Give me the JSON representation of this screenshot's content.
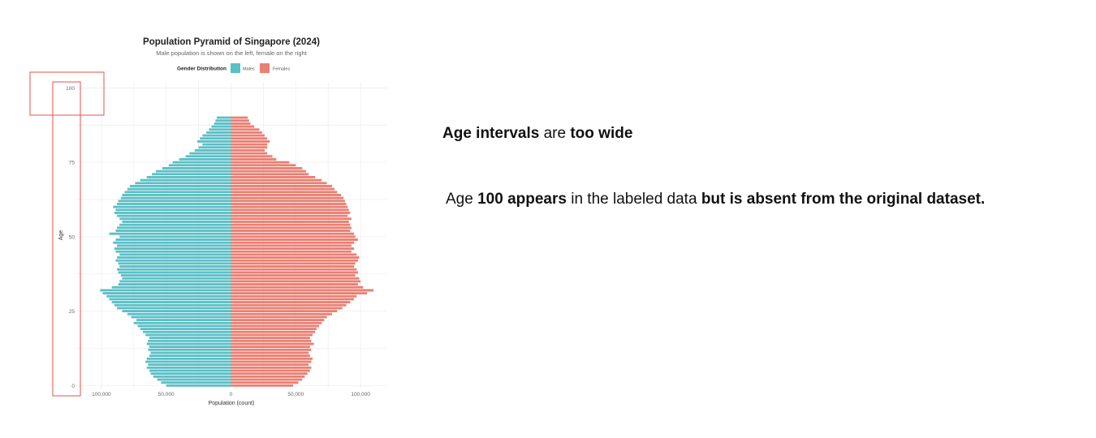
{
  "annotations": {
    "note1": {
      "part1": "Age intervals",
      "part2": " are ",
      "part3": "too wide"
    },
    "note2": {
      "part1": "Age ",
      "part2": "100 appears",
      "part3": " in the labeled data ",
      "part4": "but is absent from the original dataset."
    }
  },
  "colors": {
    "males": "#5bbfc6",
    "females": "#ea7f72",
    "highlight": "#e8504a",
    "grid": "#ececec"
  },
  "chart_data": {
    "type": "bar",
    "orientation": "horizontal-diverging",
    "title": "Population Pyramid of Singapore (2024)",
    "subtitle": "Male population is shown on the left, female on the right",
    "legend": {
      "title": "Gender Distribution",
      "position": "top",
      "items": [
        "Males",
        "Females"
      ]
    },
    "xlabel": "Population (count)",
    "ylabel": "Age",
    "xlim": [
      -120000,
      120000
    ],
    "ylim": [
      -1,
      102
    ],
    "x_ticks": [
      {
        "value": -100000,
        "label": "100,000"
      },
      {
        "value": -50000,
        "label": "50,000"
      },
      {
        "value": 0,
        "label": "0"
      },
      {
        "value": 50000,
        "label": "50,000"
      },
      {
        "value": 100000,
        "label": "100,000"
      }
    ],
    "y_ticks": [
      {
        "value": 0,
        "label": "0"
      },
      {
        "value": 25,
        "label": "25"
      },
      {
        "value": 50,
        "label": "50"
      },
      {
        "value": 75,
        "label": "75"
      },
      {
        "value": 100,
        "label": "100"
      }
    ],
    "grid": true,
    "ages": [
      0,
      1,
      2,
      3,
      4,
      5,
      6,
      7,
      8,
      9,
      10,
      11,
      12,
      13,
      14,
      15,
      16,
      17,
      18,
      19,
      20,
      21,
      22,
      23,
      24,
      25,
      26,
      27,
      28,
      29,
      30,
      31,
      32,
      33,
      34,
      35,
      36,
      37,
      38,
      39,
      40,
      41,
      42,
      43,
      44,
      45,
      46,
      47,
      48,
      49,
      50,
      51,
      52,
      53,
      54,
      55,
      56,
      57,
      58,
      59,
      60,
      61,
      62,
      63,
      64,
      65,
      66,
      67,
      68,
      69,
      70,
      71,
      72,
      73,
      74,
      75,
      76,
      77,
      78,
      79,
      80,
      81,
      82,
      83,
      84,
      85,
      86,
      87,
      88,
      89,
      90
    ],
    "series": [
      {
        "name": "Males",
        "values": [
          50000,
          54000,
          57000,
          60000,
          62000,
          63000,
          65000,
          64000,
          66000,
          65000,
          63000,
          62000,
          64000,
          63000,
          65000,
          64000,
          63000,
          66000,
          68000,
          70000,
          72000,
          75000,
          73000,
          77000,
          80000,
          84000,
          88000,
          90000,
          92000,
          94000,
          96000,
          99000,
          101000,
          92000,
          87000,
          86000,
          84000,
          85000,
          87000,
          88000,
          86000,
          87000,
          89000,
          88000,
          86000,
          89000,
          90000,
          88000,
          91000,
          89000,
          86000,
          94000,
          89000,
          88000,
          86000,
          84000,
          86000,
          88000,
          90000,
          89000,
          91000,
          88000,
          87000,
          85000,
          84000,
          82000,
          80000,
          78000,
          74000,
          70000,
          65000,
          61000,
          58000,
          53000,
          48000,
          45000,
          40000,
          35000,
          32000,
          28000,
          25000,
          22000,
          26000,
          24000,
          22000,
          19000,
          17000,
          15000,
          13000,
          12000,
          11000
        ]
      },
      {
        "name": "Females",
        "values": [
          48000,
          52000,
          55000,
          57000,
          59000,
          61000,
          62000,
          60000,
          62000,
          63000,
          61000,
          60000,
          62000,
          61000,
          64000,
          62000,
          61000,
          63000,
          65000,
          66000,
          68000,
          70000,
          72000,
          74000,
          78000,
          82000,
          86000,
          89000,
          92000,
          95000,
          97000,
          105000,
          110000,
          102000,
          98000,
          100000,
          99000,
          96000,
          98000,
          97000,
          95000,
          96000,
          98000,
          99000,
          97000,
          93000,
          95000,
          93000,
          95000,
          98000,
          96000,
          95000,
          92000,
          93000,
          92000,
          91000,
          93000,
          90000,
          92000,
          91000,
          90000,
          89000,
          88000,
          87000,
          85000,
          82000,
          80000,
          78000,
          74000,
          70000,
          65000,
          60000,
          58000,
          55000,
          50000,
          45000,
          35000,
          32000,
          28000,
          26000,
          28000,
          28000,
          30000,
          28000,
          26000,
          24000,
          22000,
          18000,
          15000,
          14000,
          13000
        ]
      }
    ]
  }
}
